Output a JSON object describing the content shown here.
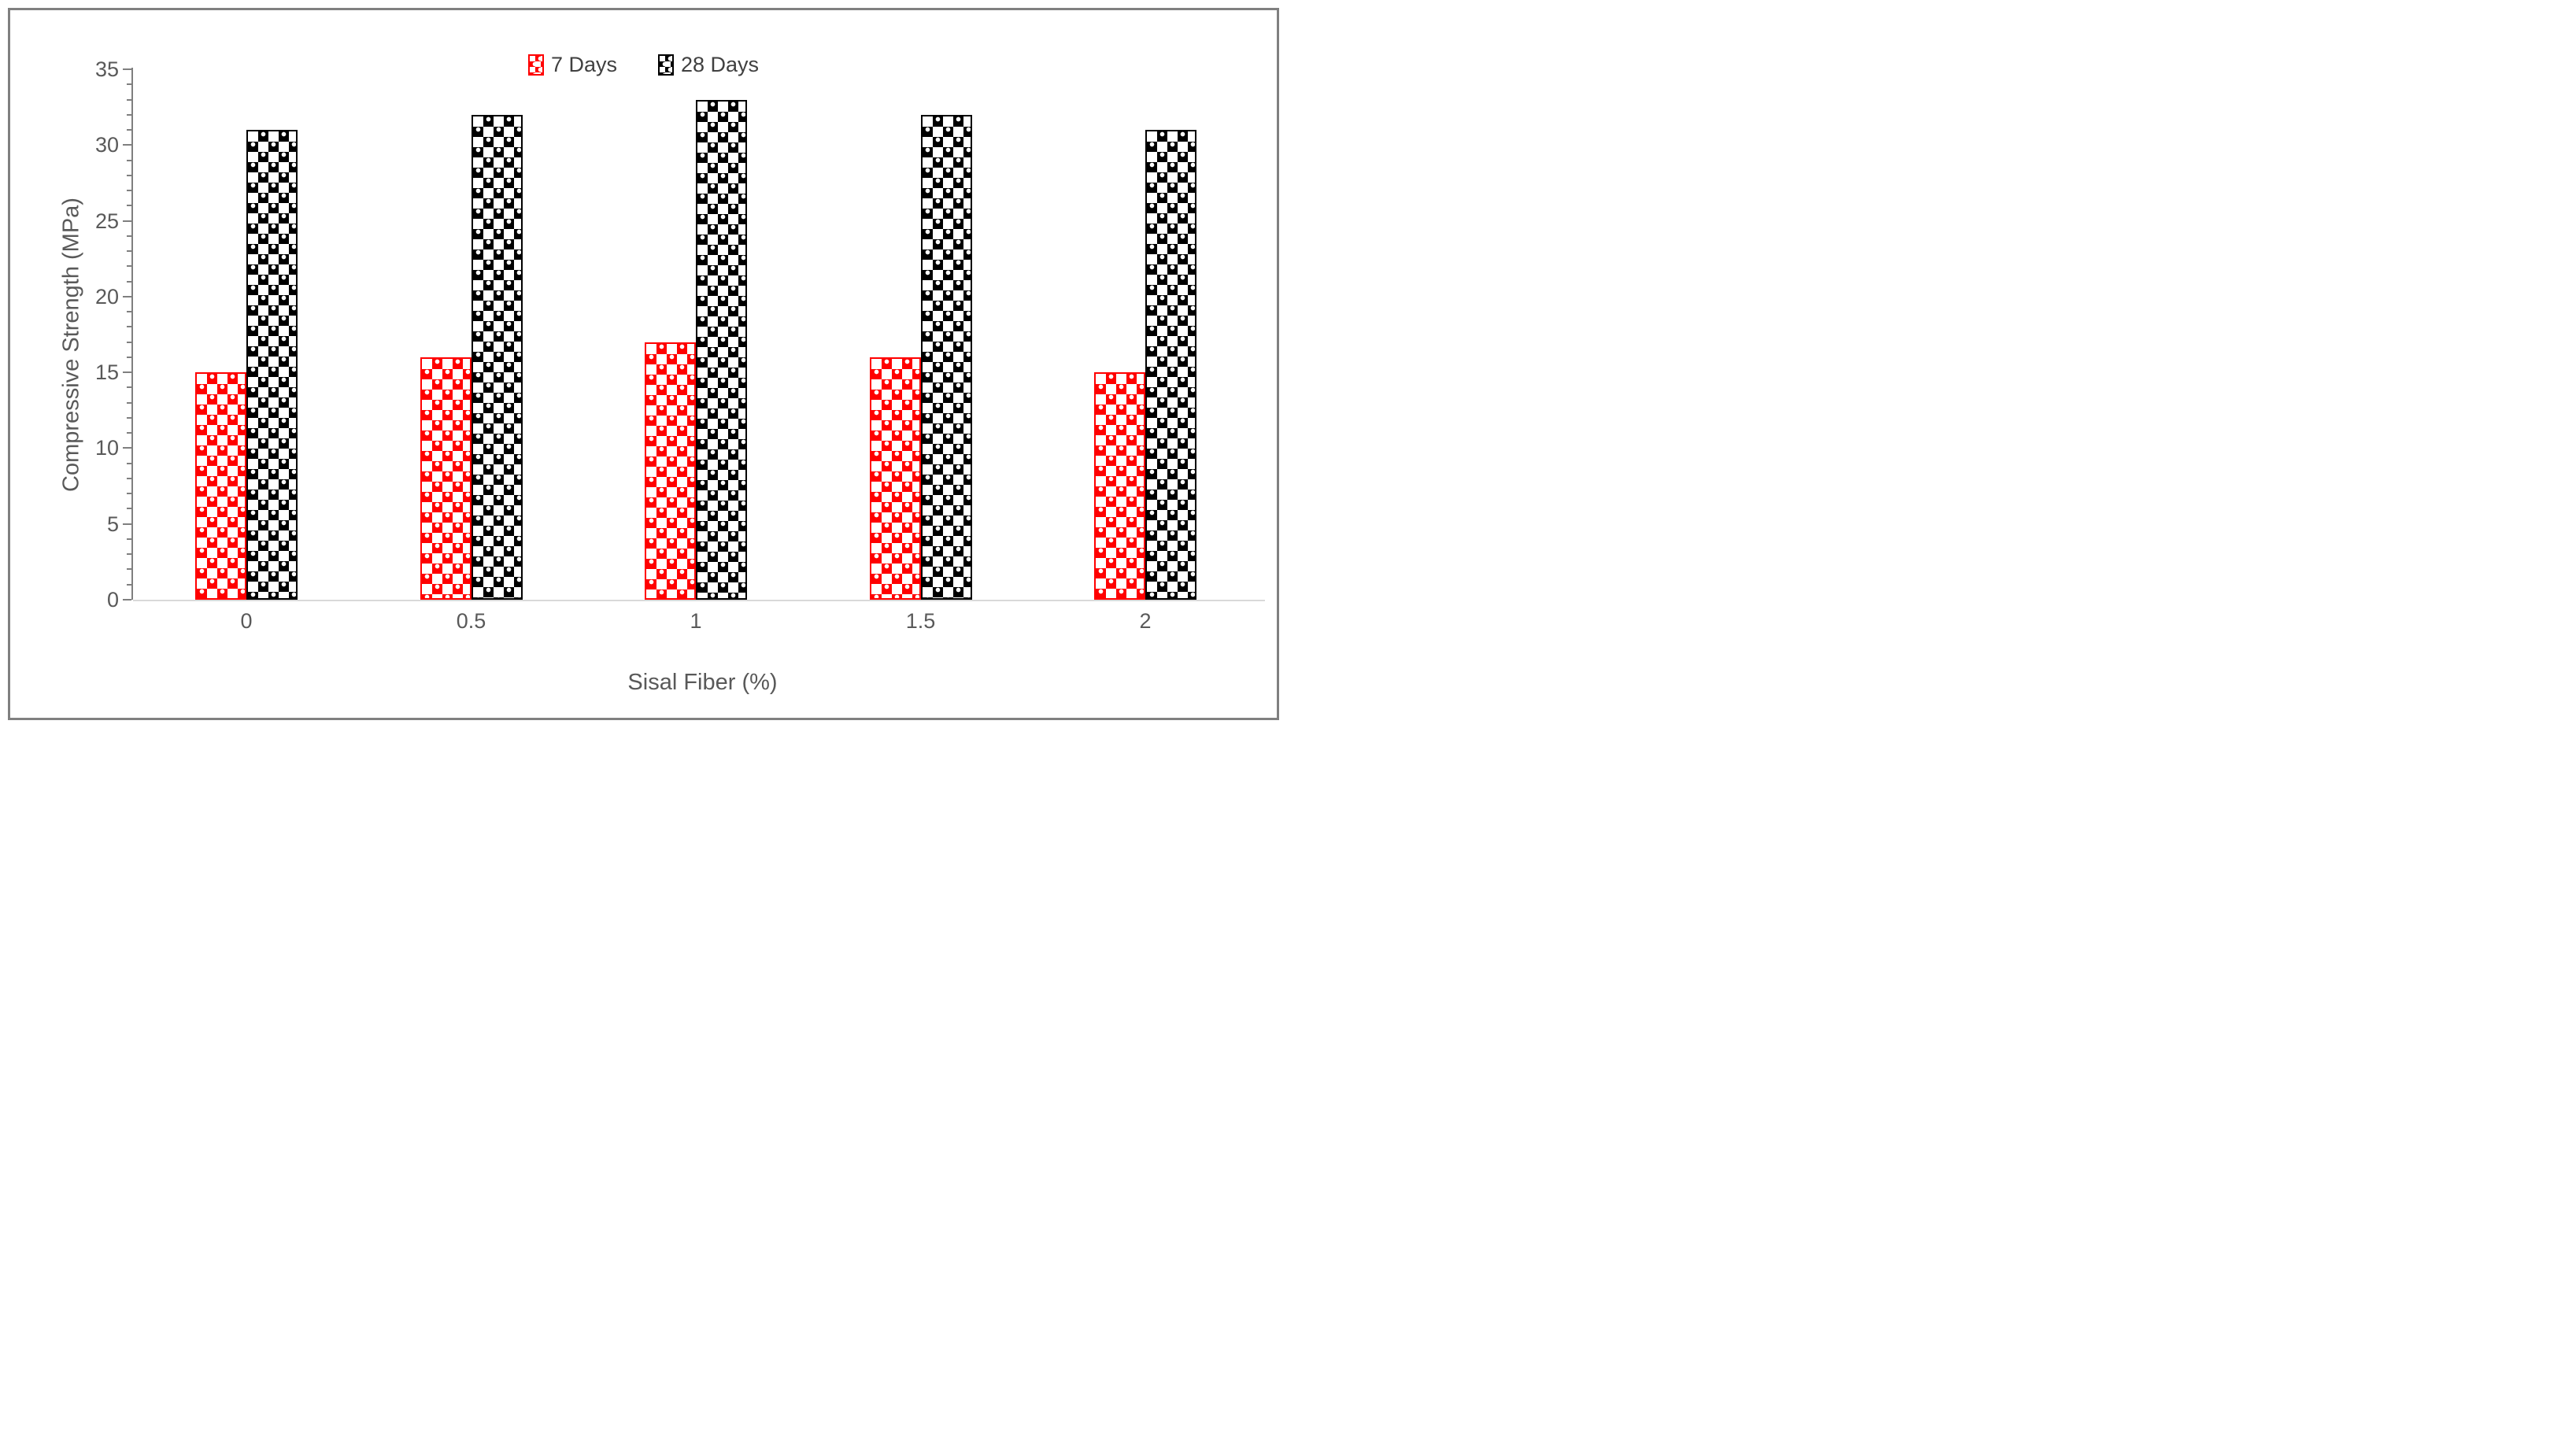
{
  "chart_data": {
    "type": "bar",
    "title": "",
    "xlabel": "Sisal Fiber (%)",
    "ylabel": "Compressive Strength (MPa)",
    "categories": [
      "0",
      "0.5",
      "1",
      "1.5",
      "2"
    ],
    "series": [
      {
        "name": "7 Days",
        "color": "#FF0000",
        "values": [
          15,
          16,
          17,
          16,
          15
        ]
      },
      {
        "name": "28 Days",
        "color": "#000000",
        "values": [
          31,
          32,
          33,
          32,
          31
        ]
      }
    ],
    "ylim": [
      0,
      35
    ],
    "ytick_step": 5,
    "yminor_step": 1,
    "ytick_labels": [
      "0",
      "5",
      "10",
      "15",
      "20",
      "25",
      "30",
      "35"
    ],
    "grid": "off",
    "legend_position": "top-center",
    "fill_style": "checker-dot-pattern",
    "colors": {
      "axis_line": "#7f7f7f",
      "baseline": "#d9d9d9",
      "tick_text": "#595959",
      "legend_text": "#404040",
      "frame_border": "#808080"
    }
  }
}
